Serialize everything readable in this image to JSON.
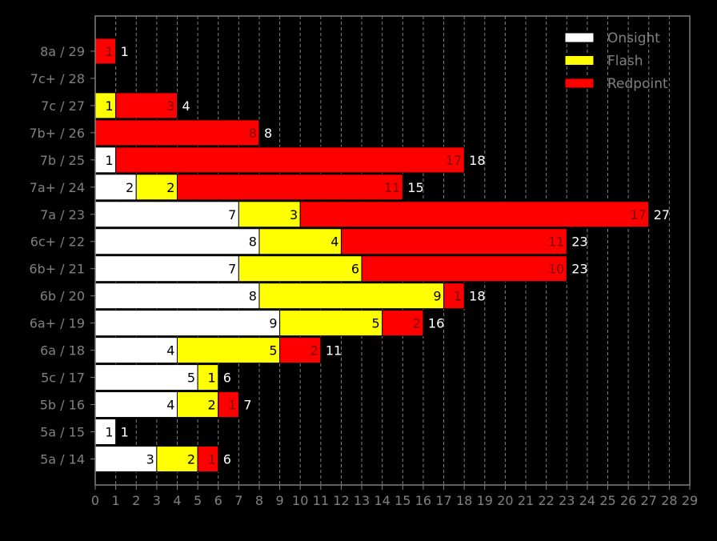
{
  "chart_data": {
    "type": "bar",
    "orientation": "horizontal",
    "stacked": true,
    "categories": [
      "5a / 14",
      "5a / 15",
      "5b / 16",
      "5c / 17",
      "6a / 18",
      "6a+ / 19",
      "6b / 20",
      "6b+ / 21",
      "6c+ / 22",
      "7a / 23",
      "7a+ / 24",
      "7b / 25",
      "7b+ / 26",
      "7c / 27",
      "7c+ / 28",
      "8a / 29"
    ],
    "series": [
      {
        "name": "Onsight",
        "color": "#ffffff",
        "label_color": "#000000",
        "values": [
          3,
          1,
          4,
          5,
          4,
          9,
          8,
          7,
          8,
          7,
          2,
          1,
          0,
          0,
          0,
          0
        ]
      },
      {
        "name": "Flash",
        "color": "#ffff00",
        "label_color": "#000000",
        "values": [
          2,
          0,
          2,
          1,
          5,
          5,
          9,
          6,
          4,
          3,
          2,
          0,
          0,
          1,
          0,
          0
        ]
      },
      {
        "name": "Redpoint",
        "color": "#ff0000",
        "label_color": "#800000",
        "values": [
          1,
          0,
          1,
          0,
          2,
          2,
          1,
          10,
          11,
          17,
          11,
          17,
          8,
          3,
          0,
          1
        ]
      }
    ],
    "totals": [
      6,
      1,
      7,
      6,
      11,
      16,
      18,
      23,
      23,
      27,
      15,
      18,
      8,
      4,
      null,
      1
    ],
    "xlim": [
      0,
      29
    ],
    "xticks": [
      "0",
      "1",
      "2",
      "3",
      "4",
      "5",
      "6",
      "7",
      "8",
      "9",
      "10",
      "11",
      "12",
      "13",
      "14",
      "15",
      "16",
      "17",
      "18",
      "19",
      "20",
      "21",
      "22",
      "23",
      "24",
      "25",
      "26",
      "27",
      "28",
      "29"
    ],
    "xlabel": "",
    "ylabel": "",
    "title": "",
    "grid": "vertical dashed",
    "legend_position": "top-right",
    "colors": {
      "background": "#000000",
      "axis": "#808080",
      "tick_label": "#808080",
      "grid": "#808080",
      "total_label": "#ffffff"
    }
  }
}
